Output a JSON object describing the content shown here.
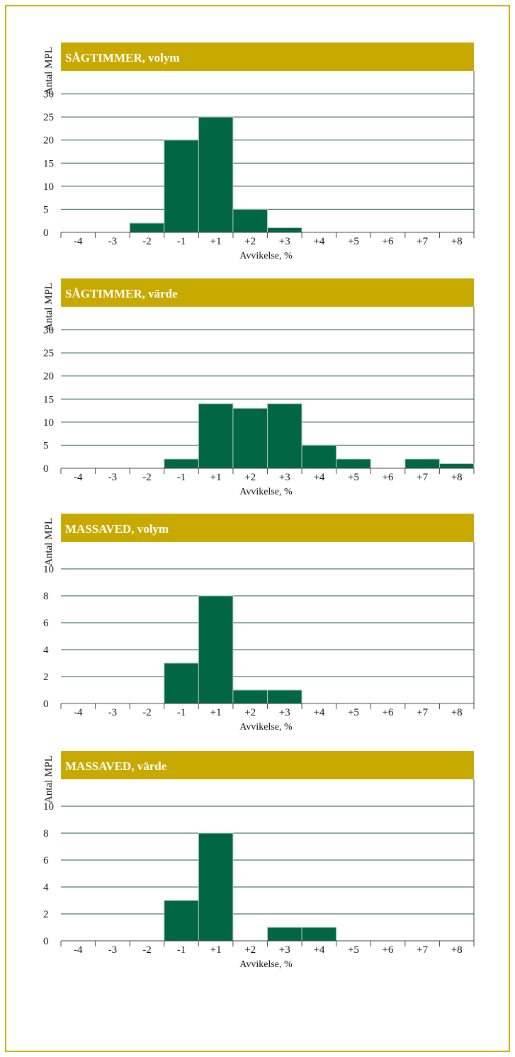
{
  "chart_data": [
    {
      "type": "bar",
      "title": "SÅGTIMMER, volym",
      "ylabel": "Antal MPL",
      "xlabel": "Avvikelse, %",
      "categories": [
        "-4",
        "-3",
        "-2",
        "-1",
        "+1",
        "+2",
        "+3",
        "+4",
        "+5",
        "+6",
        "+7",
        "+8"
      ],
      "values": [
        0,
        0,
        2,
        20,
        25,
        5,
        1,
        0,
        0,
        0,
        0,
        0
      ],
      "yticks": [
        0,
        5,
        10,
        15,
        20,
        25,
        30
      ],
      "ylim": [
        0,
        35
      ],
      "grid": true
    },
    {
      "type": "bar",
      "title": "SÅGTIMMER, värde",
      "ylabel": "Antal MPL",
      "xlabel": "Avvikelse, %",
      "categories": [
        "-4",
        "-3",
        "-2",
        "-1",
        "+1",
        "+2",
        "+3",
        "+4",
        "+5",
        "+6",
        "+7",
        "+8"
      ],
      "values": [
        0,
        0,
        0,
        2,
        14,
        13,
        14,
        5,
        2,
        0,
        2,
        1
      ],
      "yticks": [
        0,
        5,
        10,
        15,
        20,
        25,
        30
      ],
      "ylim": [
        0,
        35
      ],
      "grid": true
    },
    {
      "type": "bar",
      "title": "MASSAVED, volym",
      "ylabel": "Antal MPL",
      "xlabel": "Avvikelse, %",
      "categories": [
        "-4",
        "-3",
        "-2",
        "-1",
        "+1",
        "+2",
        "+3",
        "+4",
        "+5",
        "+6",
        "+7",
        "+8"
      ],
      "values": [
        0,
        0,
        0,
        3,
        8,
        1,
        1,
        0,
        0,
        0,
        0,
        0
      ],
      "yticks": [
        0,
        2,
        4,
        6,
        8,
        10
      ],
      "ylim": [
        0,
        12
      ],
      "grid": true
    },
    {
      "type": "bar",
      "title": "MASSAVED, värde",
      "ylabel": "Antal MPL",
      "xlabel": "Avvikelse, %",
      "categories": [
        "-4",
        "-3",
        "-2",
        "-1",
        "+1",
        "+2",
        "+3",
        "+4",
        "+5",
        "+6",
        "+7",
        "+8"
      ],
      "values": [
        0,
        0,
        0,
        3,
        8,
        0,
        1,
        1,
        0,
        0,
        0,
        0
      ],
      "yticks": [
        0,
        2,
        4,
        6,
        8,
        10
      ],
      "ylim": [
        0,
        12
      ],
      "grid": true
    }
  ],
  "colors": {
    "frame": "#cdb300",
    "title_bar": "#c8a900",
    "bar": "#006644",
    "grid": "#1f5a45"
  }
}
